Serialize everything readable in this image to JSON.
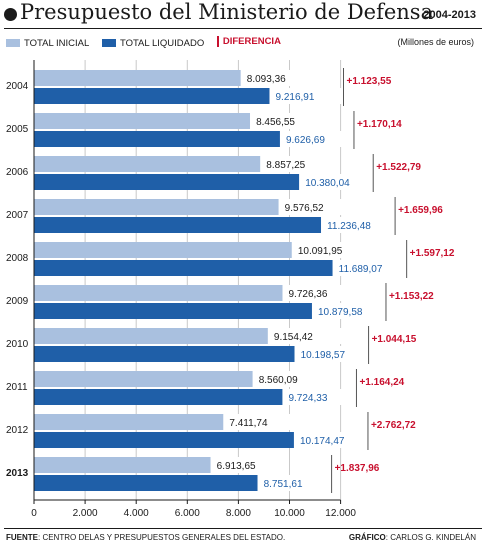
{
  "header": {
    "title": "Presupuesto del Ministerio de Defensa",
    "years": "2004-2013"
  },
  "legend": {
    "inicial": "TOTAL INICIAL",
    "liquidado": "TOTAL LIQUIDADO",
    "diferencia": "DIFERENCIA"
  },
  "units": "(Millones de euros)",
  "colors": {
    "inicial": "#a9c0df",
    "liquidado": "#1f5fa8",
    "diferencia": "#c8102e",
    "gridline": "#c9c9c9"
  },
  "footer": {
    "source_label": "FUENTE",
    "source_text": ": CENTRO DELAS Y PRESUPUESTOS GENERALES DEL ESTADO.",
    "credit_label": "GRÁFICO",
    "credit_text": ": CARLOS G. KINDELÁN"
  },
  "chart_data": {
    "type": "bar",
    "orientation": "horizontal",
    "categories": [
      "2004",
      "2005",
      "2006",
      "2007",
      "2008",
      "2009",
      "2010",
      "2011",
      "2012",
      "2013"
    ],
    "series": [
      {
        "name": "TOTAL INICIAL",
        "values": [
          8093.36,
          8456.55,
          8857.25,
          9576.52,
          10091.95,
          9726.36,
          9154.42,
          8560.09,
          7411.74,
          6913.65
        ],
        "labels": [
          "8.093,36",
          "8.456,55",
          "8.857,25",
          "9.576,52",
          "10.091,95",
          "9.726,36",
          "9.154,42",
          "8.560,09",
          "7.411,74",
          "6.913,65"
        ]
      },
      {
        "name": "TOTAL LIQUIDADO",
        "values": [
          9216.91,
          9626.69,
          10380.04,
          11236.48,
          11689.07,
          10879.58,
          10198.57,
          9724.33,
          10174.47,
          8751.61
        ],
        "labels": [
          "9.216,91",
          "9.626,69",
          "10.380,04",
          "11.236,48",
          "11.689,07",
          "10.879,58",
          "10.198,57",
          "9.724,33",
          "10.174,47",
          "8.751,61"
        ]
      }
    ],
    "differences": [
      "+1.123,55",
      "+1.170,14",
      "+1.522,79",
      "+1.659,96",
      "+1.597,12",
      "+1.153,22",
      "+1.044,15",
      "+1.164,24",
      "+2.762,72",
      "+1.837,96"
    ],
    "xlim": [
      0,
      12000
    ],
    "x_ticks": [
      0,
      2000,
      4000,
      6000,
      8000,
      10000,
      12000
    ],
    "x_tick_labels": [
      "0",
      "2.000",
      "4.000",
      "6.000",
      "8.000",
      "10.000",
      "12.000"
    ],
    "grid": true
  }
}
